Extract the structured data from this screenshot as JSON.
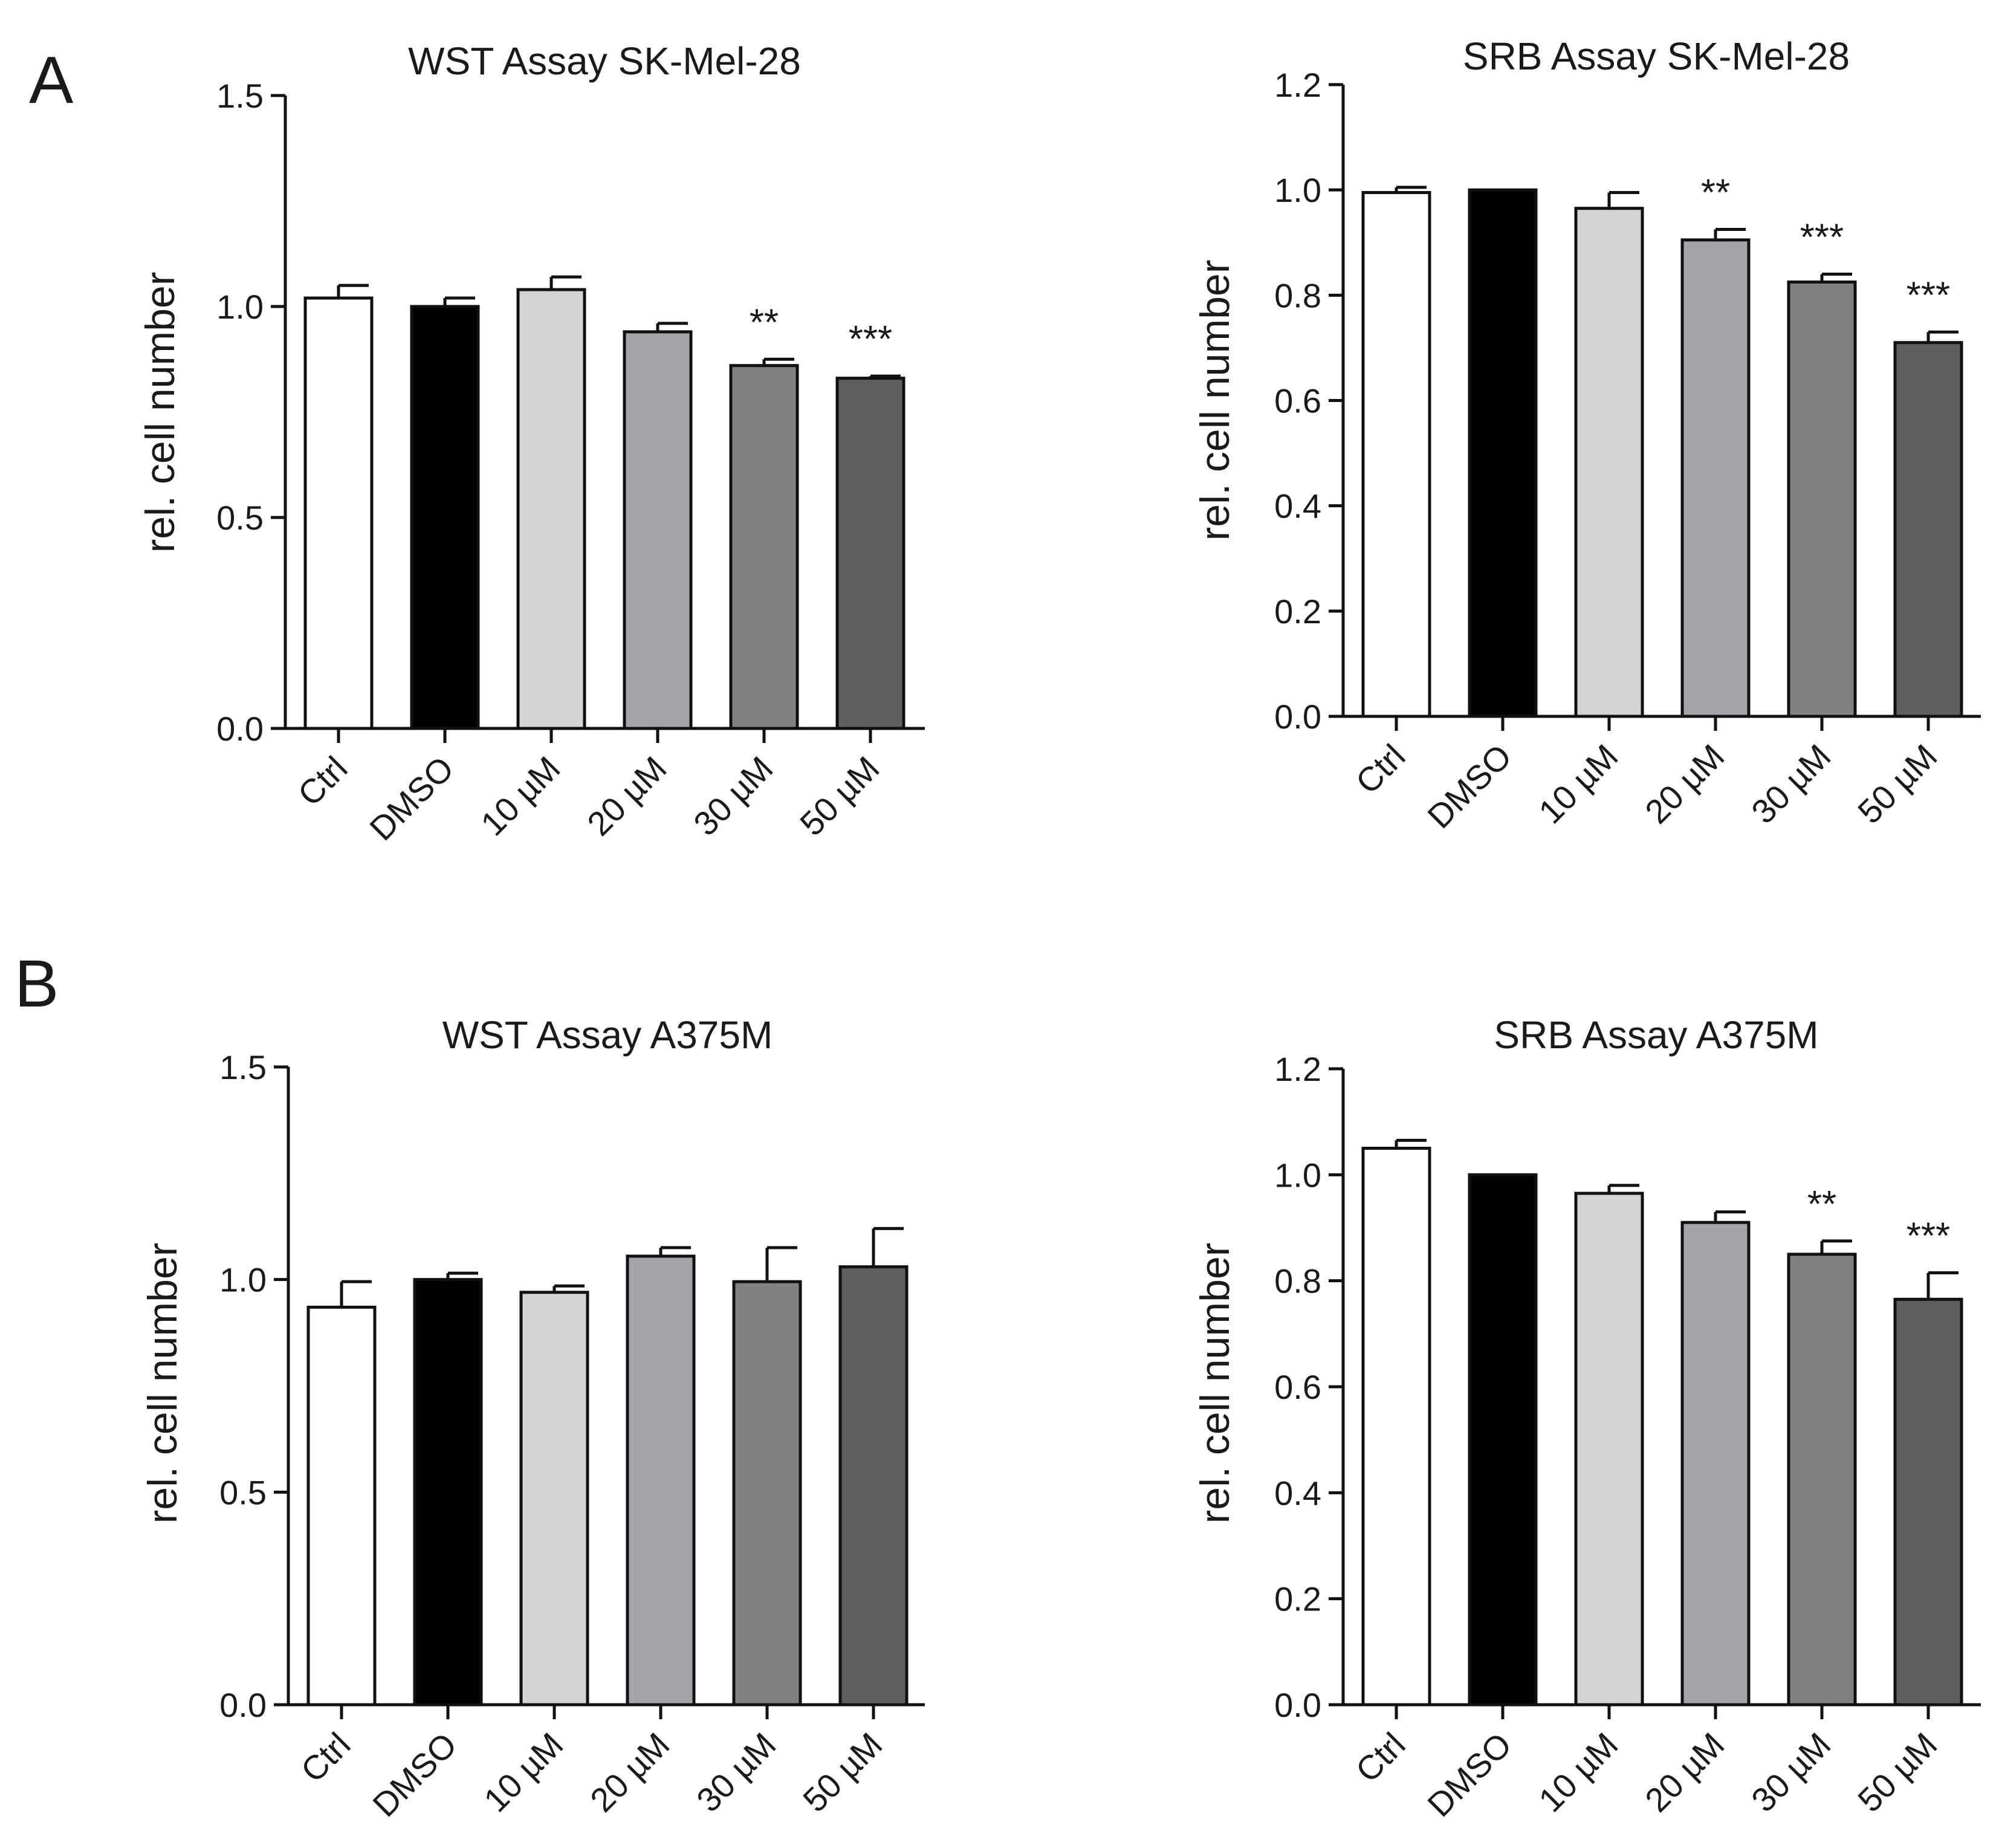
{
  "panel_labels": [
    "A",
    "B"
  ],
  "chart_data": [
    {
      "type": "bar",
      "title": "WST Assay SK-Mel-28",
      "xlabel": "",
      "ylabel": "rel. cell number",
      "ylim": [
        0,
        1.5
      ],
      "yticks": [
        0.0,
        0.5,
        1.0,
        1.5
      ],
      "ytick_labels": [
        "0.0",
        "0.5",
        "1.0",
        "1.5"
      ],
      "categories": [
        "Ctrl",
        "DMSO",
        "10 µM",
        "20 µM",
        "30 µM",
        "50 µM"
      ],
      "values": [
        1.02,
        1.0,
        1.04,
        0.94,
        0.86,
        0.83
      ],
      "errors": [
        0.03,
        0.02,
        0.03,
        0.02,
        0.015,
        0.005
      ],
      "significance": [
        "",
        "",
        "",
        "",
        "**",
        "***"
      ],
      "colors": [
        "#ffffff",
        "#000000",
        "#d4d4d4",
        "#a3a4a8",
        "#818181",
        "#5f5f5f"
      ]
    },
    {
      "type": "bar",
      "title": "SRB Assay SK-Mel-28",
      "xlabel": "",
      "ylabel": "rel. cell number",
      "ylim": [
        0,
        1.2
      ],
      "yticks": [
        0.0,
        0.2,
        0.4,
        0.6,
        0.8,
        1.0,
        1.2
      ],
      "ytick_labels": [
        "0.0",
        "0.2",
        "0.4",
        "0.6",
        "0.8",
        "1.0",
        "1.2"
      ],
      "categories": [
        "Ctrl",
        "DMSO",
        "10 µM",
        "20 µM",
        "30 µM",
        "50 µM"
      ],
      "values": [
        0.995,
        1.0,
        0.965,
        0.905,
        0.825,
        0.71
      ],
      "errors": [
        0.01,
        0.0,
        0.03,
        0.02,
        0.015,
        0.02
      ],
      "significance": [
        "",
        "",
        "",
        "**",
        "***",
        "***"
      ],
      "colors": [
        "#ffffff",
        "#000000",
        "#d4d4d4",
        "#a3a4a8",
        "#818181",
        "#5f5f5f"
      ]
    },
    {
      "type": "bar",
      "title": "WST Assay A375M",
      "xlabel": "",
      "ylabel": "rel. cell number",
      "ylim": [
        0,
        1.5
      ],
      "yticks": [
        0.0,
        0.5,
        1.0,
        1.5
      ],
      "ytick_labels": [
        "0.0",
        "0.5",
        "1.0",
        "1.5"
      ],
      "categories": [
        "Ctrl",
        "DMSO",
        "10 µM",
        "20 µM",
        "30 µM",
        "50 µM"
      ],
      "values": [
        0.935,
        1.0,
        0.97,
        1.055,
        0.995,
        1.03
      ],
      "errors": [
        0.06,
        0.015,
        0.015,
        0.02,
        0.08,
        0.09
      ],
      "significance": [
        "",
        "",
        "",
        "",
        "",
        ""
      ],
      "colors": [
        "#ffffff",
        "#000000",
        "#d4d4d4",
        "#a3a4a8",
        "#818181",
        "#5f5f5f"
      ]
    },
    {
      "type": "bar",
      "title": "SRB Assay A375M",
      "xlabel": "",
      "ylabel": "rel. cell number",
      "ylim": [
        0,
        1.2
      ],
      "yticks": [
        0.0,
        0.2,
        0.4,
        0.6,
        0.8,
        1.0,
        1.2
      ],
      "ytick_labels": [
        "0.0",
        "0.2",
        "0.4",
        "0.6",
        "0.8",
        "1.0",
        "1.2"
      ],
      "categories": [
        "Ctrl",
        "DMSO",
        "10 µM",
        "20 µM",
        "30 µM",
        "50 µM"
      ],
      "values": [
        1.05,
        1.0,
        0.965,
        0.91,
        0.85,
        0.765
      ],
      "errors": [
        0.015,
        0.0,
        0.015,
        0.02,
        0.025,
        0.05
      ],
      "significance": [
        "",
        "",
        "",
        "",
        "**",
        "***"
      ],
      "colors": [
        "#ffffff",
        "#000000",
        "#d4d4d4",
        "#a3a4a8",
        "#818181",
        "#5f5f5f"
      ]
    }
  ]
}
